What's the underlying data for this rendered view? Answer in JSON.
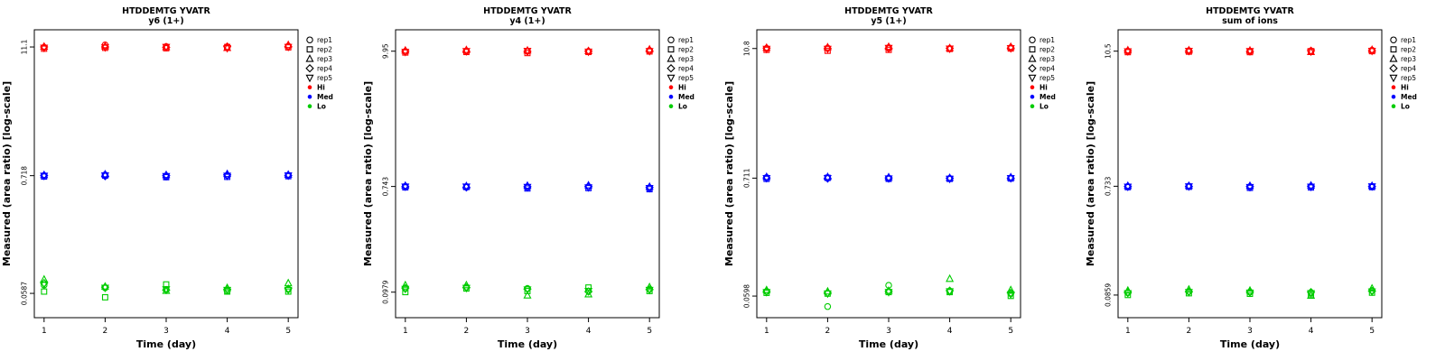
{
  "page": {
    "background": "#ffffff"
  },
  "colors": {
    "hi": "#ff0000",
    "med": "#0000ff",
    "lo": "#00cc00",
    "axis": "#000000"
  },
  "markers": [
    "circle",
    "square",
    "triangle-up",
    "diamond",
    "triangle-down"
  ],
  "legend": {
    "reps": [
      "rep1",
      "rep2",
      "rep3",
      "rep4",
      "rep5"
    ],
    "groups": [
      {
        "label": "Hi",
        "color": "#ff0000"
      },
      {
        "label": "Med",
        "color": "#0000ff"
      },
      {
        "label": "Lo",
        "color": "#00cc00"
      }
    ]
  },
  "chart_data": [
    {
      "type": "scatter",
      "title": "HTDDEMTG YVATR",
      "subtitle": "y6 (1+)",
      "xlabel": "Time (day)",
      "ylabel": "Measured (area ratio) [log-scale]",
      "x": [
        1,
        2,
        3,
        4,
        5
      ],
      "xtick_labels": [
        "1",
        "2",
        "3",
        "4",
        "5"
      ],
      "yticks": [
        11.1,
        0.718,
        0.0587
      ],
      "ytick_labels": [
        "11.1",
        "0.718",
        "0.0587"
      ],
      "ylim": [
        0.035,
        16
      ],
      "grid": false,
      "legend_position": "right",
      "series": [
        {
          "name": "Hi",
          "color": "#ff0000",
          "values": [
            [
              11.0,
              10.7,
              11.2,
              11.1,
              10.9
            ],
            [
              11.6,
              10.9,
              11.3,
              11.1,
              11.0
            ],
            [
              11.2,
              10.8,
              11.1,
              11.0,
              11.1
            ],
            [
              11.0,
              11.1,
              10.9,
              11.2,
              10.8
            ],
            [
              11.3,
              11.0,
              11.6,
              11.2,
              11.1
            ]
          ]
        },
        {
          "name": "Med",
          "color": "#0000ff",
          "values": [
            [
              0.72,
              0.705,
              0.73,
              0.72,
              0.715
            ],
            [
              0.73,
              0.72,
              0.74,
              0.71,
              0.72
            ],
            [
              0.705,
              0.695,
              0.73,
              0.72,
              0.71
            ],
            [
              0.72,
              0.7,
              0.745,
              0.73,
              0.715
            ],
            [
              0.725,
              0.71,
              0.735,
              0.72,
              0.72
            ]
          ]
        },
        {
          "name": "Lo",
          "color": "#00cc00",
          "values": [
            [
              0.07,
              0.061,
              0.079,
              0.073,
              0.071
            ],
            [
              0.066,
              0.054,
              0.068,
              0.067,
              0.066
            ],
            [
              0.064,
              0.071,
              0.062,
              0.063,
              0.064
            ],
            [
              0.062,
              0.061,
              0.066,
              0.064,
              0.063
            ],
            [
              0.064,
              0.061,
              0.073,
              0.065,
              0.063
            ]
          ]
        }
      ]
    },
    {
      "type": "scatter",
      "title": "HTDDEMTG YVATR",
      "subtitle": "y4 (1+)",
      "xlabel": "Time (day)",
      "ylabel": "Measured (area ratio) [log-scale]",
      "x": [
        1,
        2,
        3,
        4,
        5
      ],
      "xtick_labels": [
        "1",
        "2",
        "3",
        "4",
        "5"
      ],
      "yticks": [
        9.95,
        0.743,
        0.0979
      ],
      "ytick_labels": [
        "9.95",
        "0.743",
        "0.0979"
      ],
      "ylim": [
        0.06,
        15
      ],
      "grid": false,
      "legend_position": "right",
      "series": [
        {
          "name": "Hi",
          "color": "#ff0000",
          "values": [
            [
              9.9,
              9.7,
              10.1,
              9.95,
              9.8
            ],
            [
              10.0,
              9.8,
              10.2,
              9.9,
              9.95
            ],
            [
              9.95,
              9.6,
              10.1,
              9.9,
              10.0
            ],
            [
              9.9,
              9.8,
              10.0,
              9.95,
              9.85
            ],
            [
              10.1,
              9.9,
              10.3,
              10.0,
              9.95
            ]
          ]
        },
        {
          "name": "Med",
          "color": "#0000ff",
          "values": [
            [
              0.745,
              0.73,
              0.755,
              0.74,
              0.74
            ],
            [
              0.74,
              0.735,
              0.75,
              0.73,
              0.74
            ],
            [
              0.73,
              0.715,
              0.755,
              0.74,
              0.735
            ],
            [
              0.74,
              0.72,
              0.76,
              0.745,
              0.73
            ],
            [
              0.72,
              0.705,
              0.74,
              0.73,
              0.72
            ]
          ]
        },
        {
          "name": "Lo",
          "color": "#00cc00",
          "values": [
            [
              0.105,
              0.098,
              0.112,
              0.106,
              0.104
            ],
            [
              0.108,
              0.105,
              0.112,
              0.107,
              0.106
            ],
            [
              0.105,
              0.1,
              0.092,
              0.104,
              0.103
            ],
            [
              0.1,
              0.107,
              0.094,
              0.099,
              0.1
            ],
            [
              0.104,
              0.1,
              0.108,
              0.103,
              0.102
            ]
          ]
        }
      ]
    },
    {
      "type": "scatter",
      "title": "HTDDEMTG YVATR",
      "subtitle": "y5 (1+)",
      "xlabel": "Time (day)",
      "ylabel": "Measured (area ratio) [log-scale]",
      "x": [
        1,
        2,
        3,
        4,
        5
      ],
      "xtick_labels": [
        "1",
        "2",
        "3",
        "4",
        "5"
      ],
      "yticks": [
        10.8,
        0.711,
        0.0598
      ],
      "ytick_labels": [
        "10.8",
        "0.711",
        "0.0598"
      ],
      "ylim": [
        0.038,
        16
      ],
      "grid": false,
      "legend_position": "right",
      "series": [
        {
          "name": "Hi",
          "color": "#ff0000",
          "values": [
            [
              10.8,
              10.5,
              11.0,
              10.9,
              10.7
            ],
            [
              10.9,
              10.3,
              11.1,
              10.8,
              10.7
            ],
            [
              11.0,
              10.5,
              11.2,
              10.8,
              10.9
            ],
            [
              10.8,
              10.7,
              10.9,
              10.85,
              10.75
            ],
            [
              11.0,
              10.8,
              11.2,
              10.9,
              10.85
            ]
          ]
        },
        {
          "name": "Med",
          "color": "#0000ff",
          "values": [
            [
              0.72,
              0.7,
              0.73,
              0.715,
              0.71
            ],
            [
              0.72,
              0.715,
              0.73,
              0.705,
              0.71
            ],
            [
              0.71,
              0.7,
              0.725,
              0.715,
              0.705
            ],
            [
              0.705,
              0.7,
              0.715,
              0.71,
              0.7
            ],
            [
              0.715,
              0.705,
              0.725,
              0.71,
              0.71
            ]
          ]
        },
        {
          "name": "Lo",
          "color": "#00cc00",
          "values": [
            [
              0.066,
              0.064,
              0.068,
              0.066,
              0.065
            ],
            [
              0.048,
              0.063,
              0.066,
              0.064,
              0.063
            ],
            [
              0.075,
              0.065,
              0.067,
              0.066,
              0.065
            ],
            [
              0.066,
              0.065,
              0.086,
              0.067,
              0.066
            ],
            [
              0.063,
              0.06,
              0.068,
              0.064,
              0.062
            ]
          ]
        }
      ]
    },
    {
      "type": "scatter",
      "title": "HTDDEMTG YVATR",
      "subtitle": "sum of ions",
      "xlabel": "Time (day)",
      "ylabel": "Measured (area ratio) [log-scale]",
      "x": [
        1,
        2,
        3,
        4,
        5
      ],
      "xtick_labels": [
        "1",
        "2",
        "3",
        "4",
        "5"
      ],
      "yticks": [
        10.5,
        0.733,
        0.0859
      ],
      "ytick_labels": [
        "10.5",
        "0.733",
        "0.0859"
      ],
      "ylim": [
        0.055,
        16
      ],
      "grid": false,
      "legend_position": "right",
      "series": [
        {
          "name": "Hi",
          "color": "#ff0000",
          "values": [
            [
              10.5,
              10.3,
              10.7,
              10.55,
              10.45
            ],
            [
              10.6,
              10.4,
              10.7,
              10.5,
              10.55
            ],
            [
              10.5,
              10.3,
              10.65,
              10.45,
              10.5
            ],
            [
              10.45,
              10.5,
              10.35,
              10.6,
              10.4
            ],
            [
              10.7,
              10.5,
              10.8,
              10.6,
              10.55
            ]
          ]
        },
        {
          "name": "Med",
          "color": "#0000ff",
          "values": [
            [
              0.73,
              0.72,
              0.74,
              0.73,
              0.725
            ],
            [
              0.735,
              0.725,
              0.74,
              0.73,
              0.73
            ],
            [
              0.725,
              0.71,
              0.74,
              0.73,
              0.72
            ],
            [
              0.73,
              0.715,
              0.745,
              0.735,
              0.725
            ],
            [
              0.73,
              0.72,
              0.74,
              0.73,
              0.73
            ]
          ]
        },
        {
          "name": "Lo",
          "color": "#00cc00",
          "values": [
            [
              0.09,
              0.086,
              0.094,
              0.091,
              0.089
            ],
            [
              0.092,
              0.089,
              0.096,
              0.092,
              0.091
            ],
            [
              0.091,
              0.088,
              0.094,
              0.092,
              0.09
            ],
            [
              0.09,
              0.087,
              0.085,
              0.091,
              0.089
            ],
            [
              0.094,
              0.09,
              0.098,
              0.093,
              0.092
            ]
          ]
        }
      ]
    }
  ]
}
